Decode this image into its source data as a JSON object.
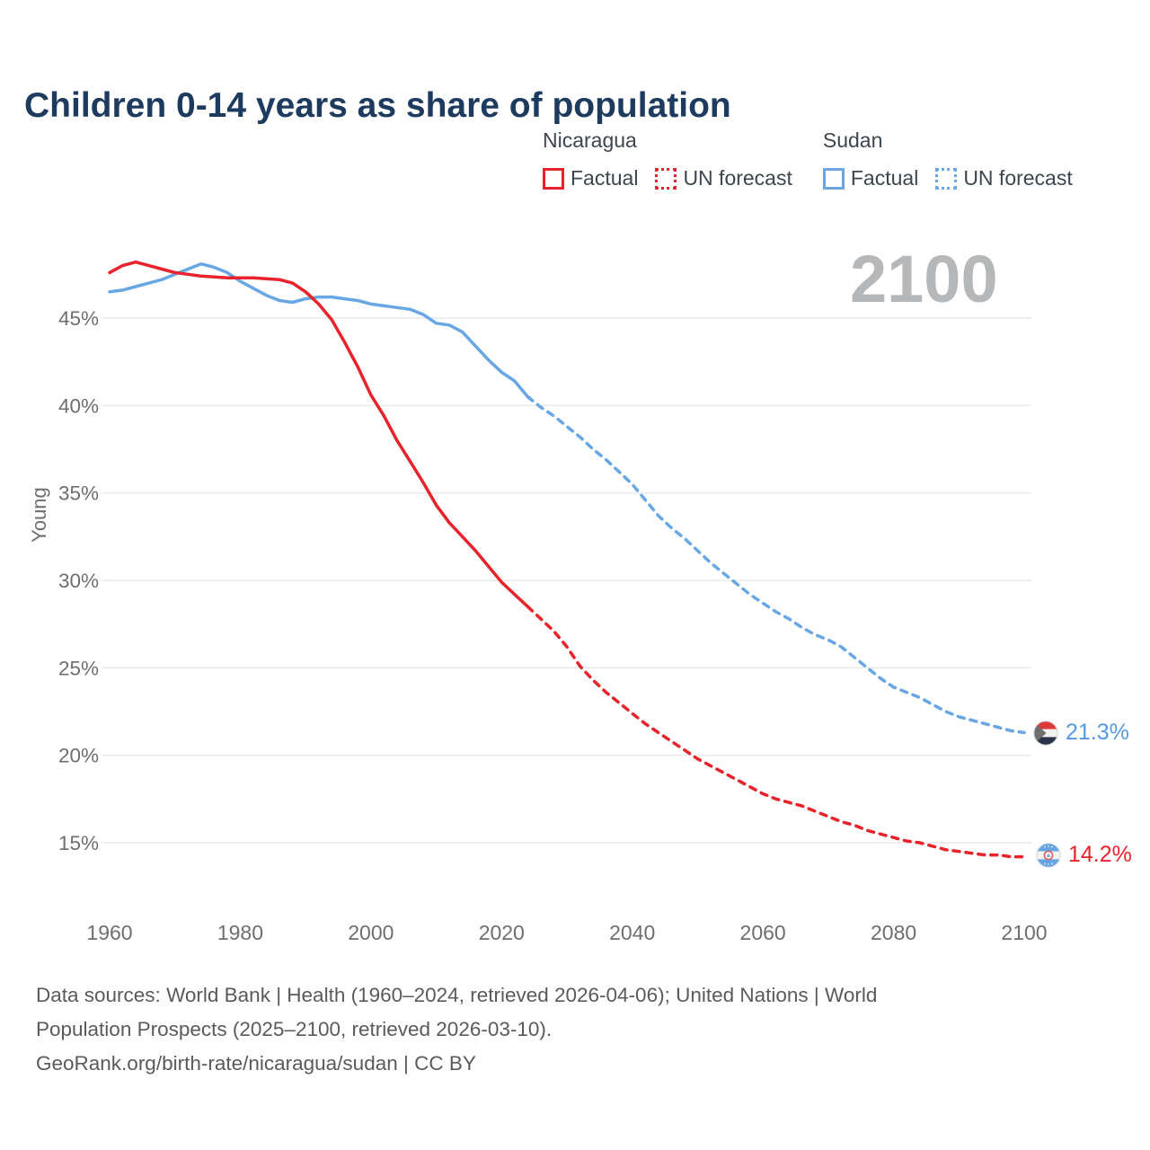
{
  "title": "Children 0-14 years as share of population",
  "legend": {
    "nicaragua": {
      "title": "Nicaragua",
      "factual": "Factual",
      "forecast": "UN forecast"
    },
    "sudan": {
      "title": "Sudan",
      "factual": "Factual",
      "forecast": "UN forecast"
    }
  },
  "watermark": "2100",
  "y_axis_title": "Young",
  "endpoints": {
    "sudan": {
      "label": "21.3%",
      "color": "#5499e0",
      "flag": "sudan-flag-icon"
    },
    "nicaragua": {
      "label": "14.2%",
      "color": "#e8232b",
      "flag": "nicaragua-flag-icon"
    }
  },
  "colors": {
    "nicaragua": "#e8232b",
    "sudan": "#68a7e4",
    "gridline": "#e9e9e9",
    "tick_text": "#6e6e6e",
    "title_text": "#1d3a5f",
    "watermark_text": "#b5b7b9"
  },
  "chart_data": {
    "type": "line",
    "title": "Children 0-14 years as share of population",
    "xlabel": "",
    "ylabel": "Young",
    "x_range": [
      1960,
      2100
    ],
    "ylim": [
      13,
      49
    ],
    "yticks": [
      15,
      20,
      25,
      30,
      35,
      40,
      45
    ],
    "ytick_suffix": "%",
    "xticks": [
      1960,
      1980,
      2000,
      2020,
      2040,
      2060,
      2080,
      2100
    ],
    "grid": "horizontal",
    "legend_position": "top-right",
    "series": [
      {
        "name": "Sudan Factual",
        "color": "#68a7e4",
        "dash": "solid",
        "points": [
          [
            1960,
            46.5
          ],
          [
            1962,
            46.6
          ],
          [
            1964,
            46.8
          ],
          [
            1966,
            47.0
          ],
          [
            1968,
            47.2
          ],
          [
            1970,
            47.5
          ],
          [
            1972,
            47.8
          ],
          [
            1974,
            48.1
          ],
          [
            1976,
            47.9
          ],
          [
            1978,
            47.6
          ],
          [
            1980,
            47.1
          ],
          [
            1982,
            46.7
          ],
          [
            1984,
            46.3
          ],
          [
            1986,
            46.0
          ],
          [
            1988,
            45.9
          ],
          [
            1990,
            46.1
          ],
          [
            1992,
            46.2
          ],
          [
            1994,
            46.2
          ],
          [
            1996,
            46.1
          ],
          [
            1998,
            46.0
          ],
          [
            2000,
            45.8
          ],
          [
            2002,
            45.7
          ],
          [
            2004,
            45.6
          ],
          [
            2006,
            45.5
          ],
          [
            2008,
            45.2
          ],
          [
            2010,
            44.7
          ],
          [
            2012,
            44.6
          ],
          [
            2014,
            44.2
          ],
          [
            2016,
            43.4
          ],
          [
            2018,
            42.6
          ],
          [
            2020,
            41.9
          ],
          [
            2022,
            41.4
          ],
          [
            2024,
            40.5
          ]
        ]
      },
      {
        "name": "Sudan UN forecast",
        "color": "#68a7e4",
        "dash": "dashed",
        "points": [
          [
            2024,
            40.5
          ],
          [
            2026,
            39.9
          ],
          [
            2028,
            39.4
          ],
          [
            2030,
            38.8
          ],
          [
            2032,
            38.2
          ],
          [
            2034,
            37.5
          ],
          [
            2036,
            36.9
          ],
          [
            2038,
            36.2
          ],
          [
            2040,
            35.5
          ],
          [
            2042,
            34.6
          ],
          [
            2044,
            33.7
          ],
          [
            2046,
            33.0
          ],
          [
            2048,
            32.4
          ],
          [
            2050,
            31.7
          ],
          [
            2052,
            31.0
          ],
          [
            2054,
            30.4
          ],
          [
            2056,
            29.8
          ],
          [
            2058,
            29.2
          ],
          [
            2060,
            28.7
          ],
          [
            2062,
            28.2
          ],
          [
            2064,
            27.8
          ],
          [
            2066,
            27.3
          ],
          [
            2068,
            26.9
          ],
          [
            2070,
            26.6
          ],
          [
            2072,
            26.2
          ],
          [
            2074,
            25.6
          ],
          [
            2076,
            25.0
          ],
          [
            2078,
            24.4
          ],
          [
            2080,
            23.9
          ],
          [
            2082,
            23.6
          ],
          [
            2084,
            23.3
          ],
          [
            2086,
            22.9
          ],
          [
            2088,
            22.5
          ],
          [
            2090,
            22.2
          ],
          [
            2092,
            22.0
          ],
          [
            2094,
            21.8
          ],
          [
            2096,
            21.6
          ],
          [
            2098,
            21.4
          ],
          [
            2100,
            21.3
          ]
        ]
      },
      {
        "name": "Nicaragua Factual",
        "color": "#e8232b",
        "dash": "solid",
        "points": [
          [
            1960,
            47.6
          ],
          [
            1962,
            48.0
          ],
          [
            1964,
            48.2
          ],
          [
            1966,
            48.0
          ],
          [
            1968,
            47.8
          ],
          [
            1970,
            47.6
          ],
          [
            1972,
            47.5
          ],
          [
            1974,
            47.4
          ],
          [
            1976,
            47.35
          ],
          [
            1978,
            47.3
          ],
          [
            1980,
            47.3
          ],
          [
            1982,
            47.3
          ],
          [
            1984,
            47.25
          ],
          [
            1986,
            47.2
          ],
          [
            1988,
            47.0
          ],
          [
            1990,
            46.5
          ],
          [
            1992,
            45.8
          ],
          [
            1994,
            44.9
          ],
          [
            1996,
            43.6
          ],
          [
            1998,
            42.2
          ],
          [
            2000,
            40.6
          ],
          [
            2002,
            39.4
          ],
          [
            2004,
            38.0
          ],
          [
            2006,
            36.8
          ],
          [
            2008,
            35.6
          ],
          [
            2010,
            34.3
          ],
          [
            2012,
            33.3
          ],
          [
            2014,
            32.5
          ],
          [
            2016,
            31.7
          ],
          [
            2018,
            30.8
          ],
          [
            2020,
            29.9
          ],
          [
            2022,
            29.2
          ],
          [
            2024,
            28.5
          ]
        ]
      },
      {
        "name": "Nicaragua UN forecast",
        "color": "#e8232b",
        "dash": "dashed",
        "points": [
          [
            2024,
            28.5
          ],
          [
            2026,
            27.8
          ],
          [
            2028,
            27.1
          ],
          [
            2030,
            26.2
          ],
          [
            2032,
            25.1
          ],
          [
            2034,
            24.3
          ],
          [
            2036,
            23.6
          ],
          [
            2038,
            23.0
          ],
          [
            2040,
            22.4
          ],
          [
            2042,
            21.8
          ],
          [
            2044,
            21.3
          ],
          [
            2046,
            20.8
          ],
          [
            2048,
            20.3
          ],
          [
            2050,
            19.8
          ],
          [
            2052,
            19.4
          ],
          [
            2054,
            19.0
          ],
          [
            2056,
            18.6
          ],
          [
            2058,
            18.2
          ],
          [
            2060,
            17.8
          ],
          [
            2062,
            17.5
          ],
          [
            2064,
            17.3
          ],
          [
            2066,
            17.1
          ],
          [
            2068,
            16.8
          ],
          [
            2070,
            16.5
          ],
          [
            2072,
            16.2
          ],
          [
            2074,
            16.0
          ],
          [
            2076,
            15.7
          ],
          [
            2078,
            15.5
          ],
          [
            2080,
            15.3
          ],
          [
            2082,
            15.1
          ],
          [
            2084,
            15.0
          ],
          [
            2086,
            14.8
          ],
          [
            2088,
            14.6
          ],
          [
            2090,
            14.5
          ],
          [
            2092,
            14.4
          ],
          [
            2094,
            14.3
          ],
          [
            2096,
            14.3
          ],
          [
            2098,
            14.2
          ],
          [
            2100,
            14.2
          ]
        ]
      }
    ]
  },
  "footer": {
    "line1": "Data sources: World Bank | Health (1960–2024, retrieved 2026-04-06); United Nations | World",
    "line2": "Population Prospects (2025–2100, retrieved 2026-03-10).",
    "line3": "GeoRank.org/birth-rate/nicaragua/sudan | CC BY"
  }
}
